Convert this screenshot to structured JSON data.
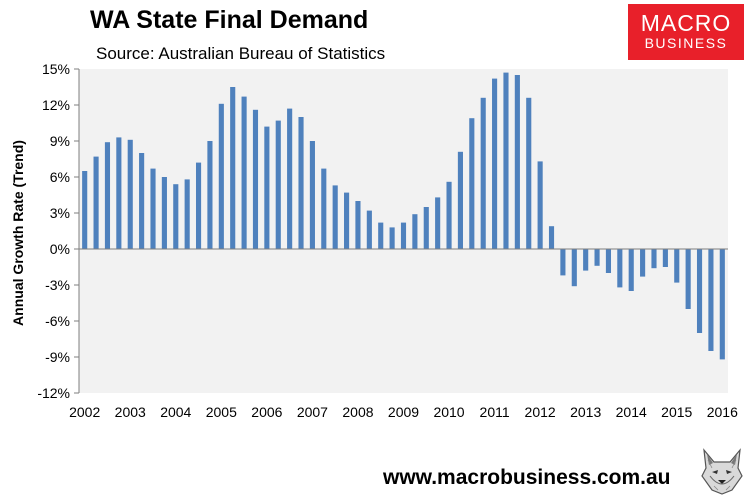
{
  "header": {
    "title": "WA State Final Demand",
    "subtitle": "Source: Australian Bureau of Statistics"
  },
  "logo": {
    "line1": "MACRO",
    "line2": "BUSINESS"
  },
  "footer": {
    "website": "www.macrobusiness.com.au"
  },
  "colors": {
    "bar": "#4f81bd",
    "plot_bg": "#f2f2f2",
    "logo_bg": "#e8202a"
  },
  "chart_data": {
    "type": "bar",
    "title": "WA State Final Demand",
    "xlabel": "",
    "ylabel": "Annual Growth Rate (Trend)",
    "ylim": [
      -12,
      15
    ],
    "yticks": [
      15,
      12,
      9,
      6,
      3,
      0,
      -3,
      -6,
      -9,
      -12
    ],
    "ytick_labels": [
      "15%",
      "12%",
      "9%",
      "6%",
      "3%",
      "0%",
      "-3%",
      "-6%",
      "-9%",
      "-12%"
    ],
    "xtick_labels": [
      "2002",
      "2003",
      "2004",
      "2005",
      "2006",
      "2007",
      "2008",
      "2009",
      "2010",
      "2011",
      "2012",
      "2013",
      "2014",
      "2015",
      "2016"
    ],
    "grid": false,
    "series": [
      {
        "name": "WA State Final Demand (annual growth, trend)",
        "values": [
          6.5,
          7.7,
          8.9,
          9.3,
          9.1,
          8.0,
          6.7,
          6.0,
          5.4,
          5.8,
          7.2,
          9.0,
          12.1,
          13.5,
          12.7,
          11.6,
          10.2,
          10.7,
          11.7,
          11.0,
          9.0,
          6.7,
          5.3,
          4.7,
          4.0,
          3.2,
          2.2,
          1.8,
          2.2,
          2.9,
          3.5,
          4.3,
          5.6,
          8.1,
          10.9,
          12.6,
          14.2,
          14.7,
          14.5,
          12.6,
          7.3,
          1.9,
          -2.2,
          -3.1,
          -1.8,
          -1.4,
          -2.0,
          -3.2,
          -3.5,
          -2.3,
          -1.6,
          -1.5,
          -2.8,
          -5.0,
          -7.0,
          -8.5,
          -9.2
        ]
      }
    ]
  }
}
